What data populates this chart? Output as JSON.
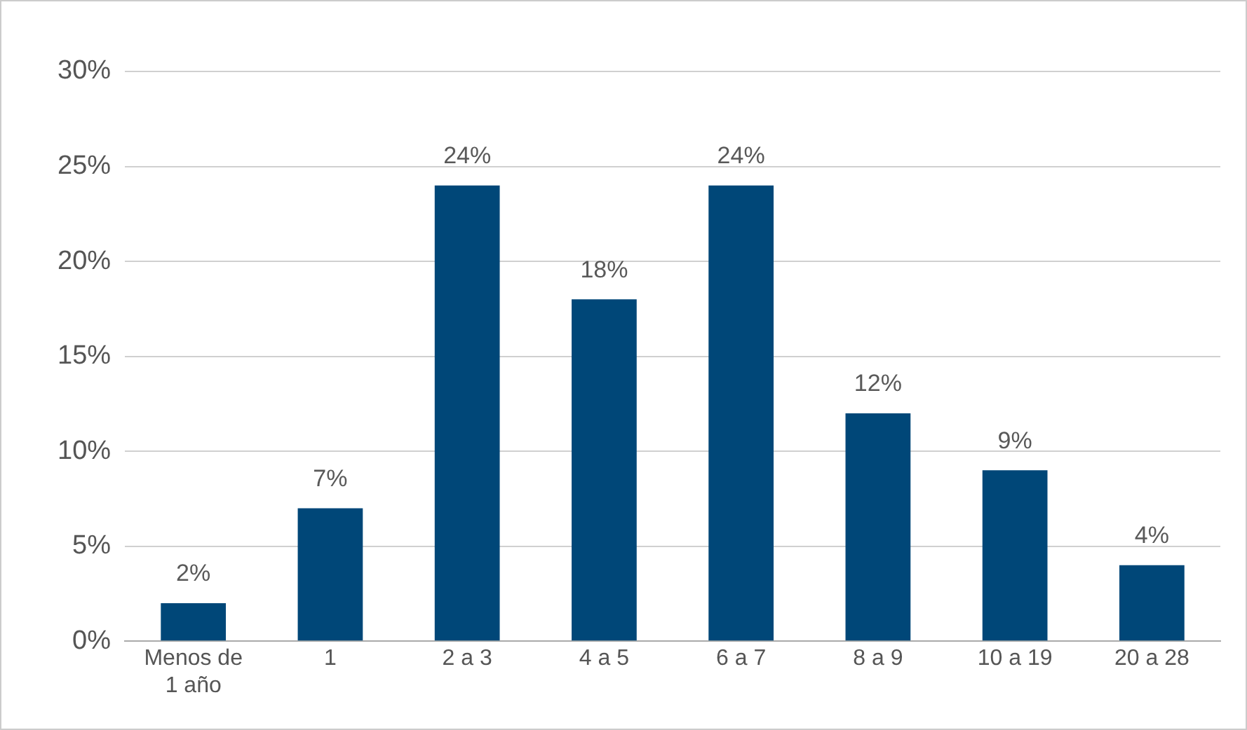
{
  "chart_data": {
    "type": "bar",
    "categories": [
      "Menos de 1 año",
      "1",
      "2 a 3",
      "4 a 5",
      "6 a 7",
      "8 a 9",
      "10 a 19",
      "20 a 28"
    ],
    "values": [
      2,
      7,
      24,
      18,
      24,
      12,
      9,
      4
    ],
    "color": "#004778",
    "ylim": [
      0,
      30
    ],
    "yticks": [
      {
        "value": 0,
        "label": "0%"
      },
      {
        "value": 5,
        "label": "5%"
      },
      {
        "value": 10,
        "label": "10%"
      },
      {
        "value": 15,
        "label": "15%"
      },
      {
        "value": 20,
        "label": "20%"
      },
      {
        "value": 25,
        "label": "25%"
      },
      {
        "value": 30,
        "label": "30%"
      }
    ],
    "grid": "y",
    "data_labels": true,
    "value_labels": [
      "2%",
      "7%",
      "24%",
      "18%",
      "24%",
      "12%",
      "9%",
      "4%"
    ]
  }
}
